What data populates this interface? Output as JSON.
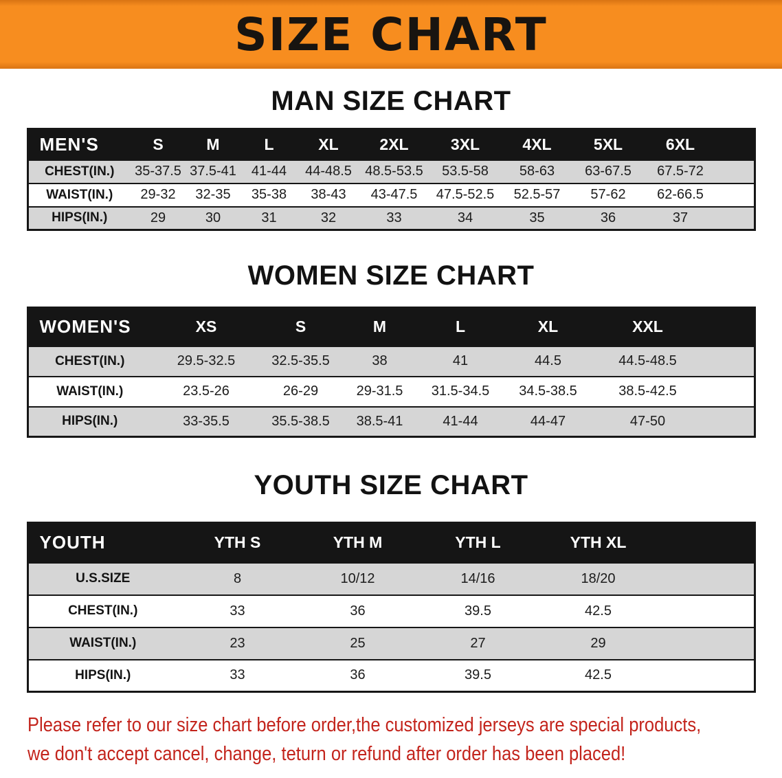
{
  "banner": {
    "title": "SIZE CHART"
  },
  "men": {
    "heading": "MAN SIZE CHART",
    "header": [
      "MEN'S",
      "S",
      "M",
      "L",
      "XL",
      "2XL",
      "3XL",
      "4XL",
      "5XL",
      "6XL"
    ],
    "rows": [
      [
        "CHEST(IN.)",
        "35-37.5",
        "37.5-41",
        "41-44",
        "44-48.5",
        "48.5-53.5",
        "53.5-58",
        "58-63",
        "63-67.5",
        "67.5-72"
      ],
      [
        "WAIST(IN.)",
        "29-32",
        "32-35",
        "35-38",
        "38-43",
        "43-47.5",
        "47.5-52.5",
        "52.5-57",
        "57-62",
        "62-66.5"
      ],
      [
        "HIPS(IN.)",
        "29",
        "30",
        "31",
        "32",
        "33",
        "34",
        "35",
        "36",
        "37"
      ]
    ]
  },
  "women": {
    "heading": "WOMEN SIZE CHART",
    "header": [
      "WOMEN'S",
      "XS",
      "S",
      "M",
      "L",
      "XL",
      "XXL"
    ],
    "rows": [
      [
        "CHEST(IN.)",
        "29.5-32.5",
        "32.5-35.5",
        "38",
        "41",
        "44.5",
        "44.5-48.5"
      ],
      [
        "WAIST(IN.)",
        "23.5-26",
        "26-29",
        "29-31.5",
        "31.5-34.5",
        "34.5-38.5",
        "38.5-42.5"
      ],
      [
        "HIPS(IN.)",
        "33-35.5",
        "35.5-38.5",
        "38.5-41",
        "41-44",
        "44-47",
        "47-50"
      ]
    ]
  },
  "youth": {
    "heading": "YOUTH SIZE CHART",
    "header": [
      "YOUTH",
      "YTH S",
      "YTH M",
      "YTH L",
      "YTH XL"
    ],
    "rows": [
      [
        "U.S.SIZE",
        "8",
        "10/12",
        "14/16",
        "18/20"
      ],
      [
        "CHEST(IN.)",
        "33",
        "36",
        "39.5",
        "42.5"
      ],
      [
        "WAIST(IN.)",
        "23",
        "25",
        "27",
        "29"
      ],
      [
        "HIPS(IN.)",
        "33",
        "36",
        "39.5",
        "42.5"
      ]
    ]
  },
  "disclaimer": {
    "line1": "Please refer to our size chart before order,the customized jerseys are special products,",
    "line2": "we don't accept cancel, change, teturn or refund after order has been placed!"
  },
  "colors": {
    "banner_bg": "#f78d1f",
    "header_bg": "#151515",
    "row_alt_bg": "#d6d6d6",
    "disclaimer_red": "#c3241c"
  }
}
